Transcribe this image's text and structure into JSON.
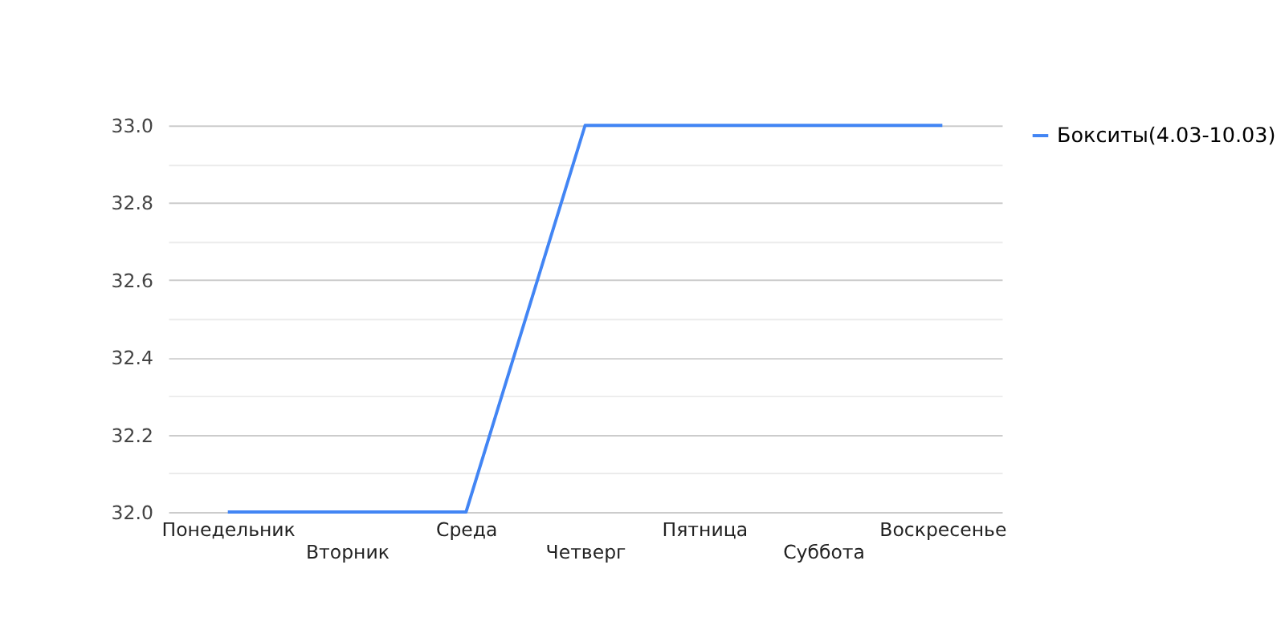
{
  "chart_data": {
    "type": "line",
    "categories": [
      "Понедельник",
      "Вторник",
      "Среда",
      "Четверг",
      "Пятница",
      "Суббота",
      "Воскресенье"
    ],
    "series": [
      {
        "name": "Бокситы(4.03-10.03)",
        "color": "#4285f4",
        "values": [
          32,
          32,
          32,
          33,
          33,
          33,
          33
        ]
      }
    ],
    "ylim": [
      32,
      33
    ],
    "yticks": [
      {
        "value": 32,
        "label": "32.0"
      },
      {
        "value": 32.1,
        "label": null
      },
      32.2,
      {
        "value": 32.3,
        "label": null
      },
      32.4,
      {
        "value": 32.5,
        "label": null
      },
      32.6,
      {
        "value": 32.7,
        "label": null
      },
      32.8,
      {
        "value": 32.9,
        "label": null
      },
      {
        "value": 33,
        "label": "33.0"
      }
    ],
    "grid": "y",
    "legend": "top right",
    "marker": "none",
    "line_style": "solid"
  }
}
